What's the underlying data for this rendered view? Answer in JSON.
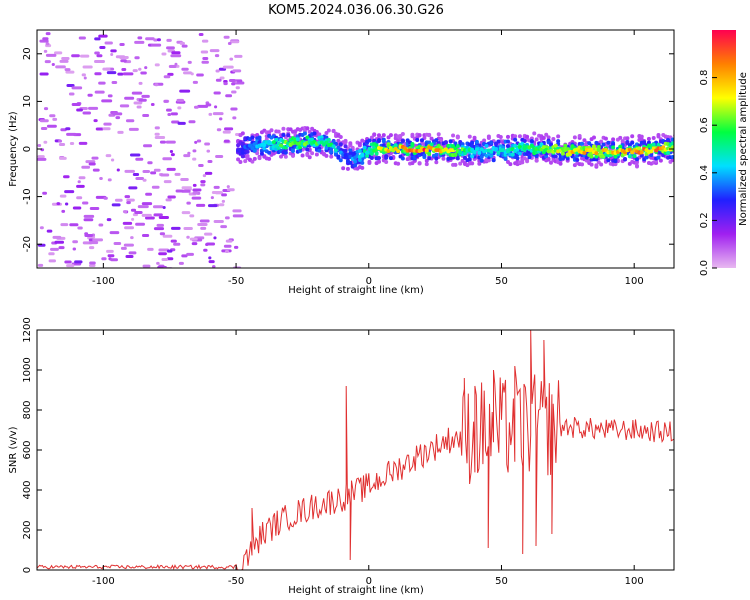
{
  "title": "KOM5.2024.036.06.30.G26",
  "chart_data": [
    {
      "type": "heatmap",
      "xlabel": "Height of straight line (km)",
      "ylabel": "Frequency (Hz)",
      "xlim": [
        -125,
        115
      ],
      "ylim": [
        -25,
        25
      ],
      "x_ticks": [
        -100,
        -50,
        0,
        50,
        100
      ],
      "y_ticks": [
        -20,
        -10,
        0,
        10,
        20
      ],
      "colorbar": {
        "label": "Normalized spectral amplitude",
        "range": [
          0,
          1
        ],
        "ticks": [
          0.0,
          0.2,
          0.4,
          0.6,
          0.8
        ],
        "colormap": [
          "#e8b8f0",
          "#a020f0",
          "#2020ff",
          "#00e0ff",
          "#00ff40",
          "#ffff00",
          "#ff8000",
          "#ff0050"
        ]
      },
      "noise_region_x": [
        -125,
        -50
      ],
      "ridge": {
        "x": [
          -50,
          -45,
          -40,
          -30,
          -20,
          -15,
          -10,
          -7,
          -5,
          0,
          10,
          20,
          30,
          40,
          50,
          60,
          70,
          80,
          90,
          100,
          110,
          115
        ],
        "frequency": [
          0,
          0.5,
          1,
          1.2,
          1.5,
          1.2,
          -1.2,
          -2,
          -1.5,
          0,
          0,
          0,
          -0.2,
          -0.5,
          -0.3,
          0.3,
          -0.2,
          -0.5,
          -0.6,
          -0.5,
          0,
          0.2
        ],
        "amplitude": [
          0.25,
          0.35,
          0.45,
          0.6,
          0.55,
          0.5,
          0.3,
          0.35,
          0.4,
          0.55,
          0.8,
          0.9,
          0.65,
          0.45,
          0.45,
          0.55,
          0.7,
          0.75,
          0.7,
          0.8,
          0.8,
          0.6
        ]
      }
    },
    {
      "type": "line",
      "xlabel": "Height of straight line (km)",
      "ylabel": "SNR (v/v)",
      "xlim": [
        -125,
        115
      ],
      "ylim": [
        0,
        1200
      ],
      "x_ticks": [
        -100,
        -50,
        0,
        50,
        100
      ],
      "y_ticks": [
        0,
        200,
        400,
        600,
        800,
        1000,
        1200
      ],
      "series": [
        {
          "color": "#e03030",
          "anchors_x": [
            -125,
            -55,
            -50,
            -45,
            -40,
            -35,
            -30,
            -20,
            -10,
            0,
            10,
            20,
            30,
            35,
            40,
            50,
            60,
            70,
            80,
            90,
            100,
            110,
            115
          ],
          "anchors_y": [
            15,
            15,
            15,
            80,
            180,
            230,
            270,
            320,
            360,
            420,
            500,
            580,
            650,
            670,
            690,
            710,
            720,
            720,
            710,
            700,
            700,
            690,
            690
          ],
          "peaks": [
            {
              "x": -8.5,
              "y": 920
            },
            {
              "x": -7,
              "y": 50
            },
            {
              "x": -44,
              "y": 310
            },
            {
              "x": 36,
              "y": 960
            },
            {
              "x": 40,
              "y": 920
            },
            {
              "x": 45,
              "y": 110
            },
            {
              "x": 47,
              "y": 1000
            },
            {
              "x": 55,
              "y": 1020
            },
            {
              "x": 58,
              "y": 80
            },
            {
              "x": 61,
              "y": 1200
            },
            {
              "x": 63,
              "y": 120
            },
            {
              "x": 66,
              "y": 1150
            },
            {
              "x": 69,
              "y": 180
            }
          ]
        }
      ]
    }
  ]
}
